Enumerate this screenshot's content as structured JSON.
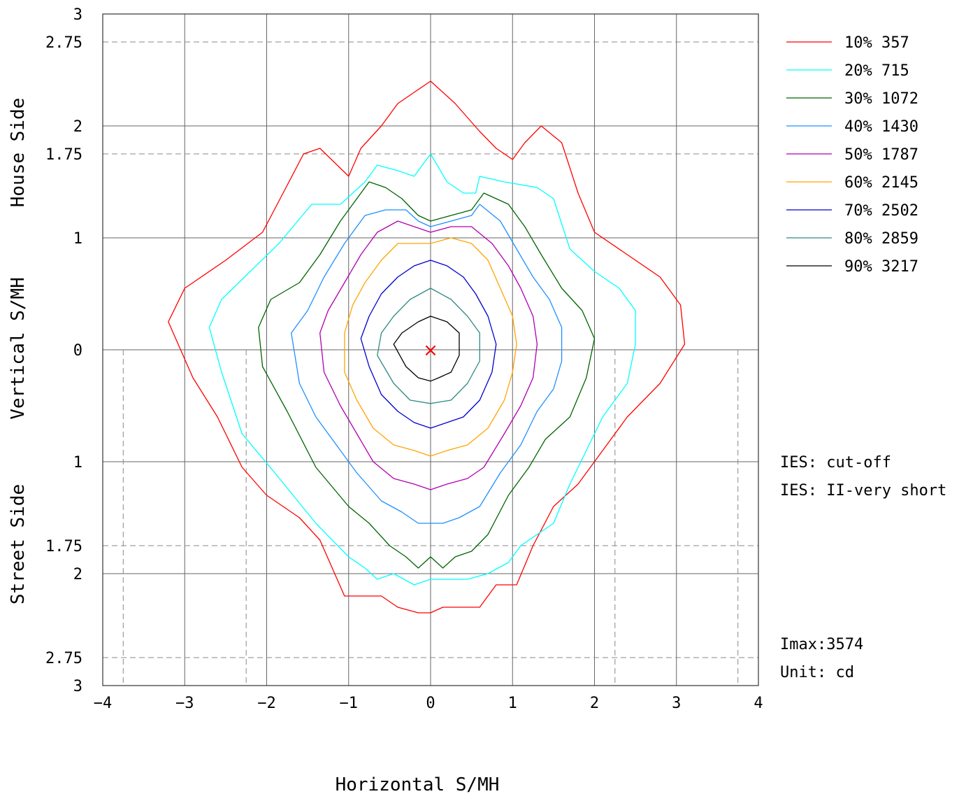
{
  "chart_data": {
    "type": "line",
    "subtype": "iso-intensity contour (isocandela) plot",
    "xlabel": "Horizontal  S/MH",
    "ylabel_segments": [
      "House Side",
      "Vertical  S/MH",
      "Street Side"
    ],
    "xlim": [
      -4,
      4
    ],
    "ylim": [
      -3,
      3
    ],
    "x_ticks": [
      "−4",
      "−3",
      "−2",
      "−1",
      "0",
      "1",
      "2",
      "3",
      "4"
    ],
    "y_ticks": [
      {
        "value": 3,
        "label": "3"
      },
      {
        "value": 2.75,
        "label": "2.75"
      },
      {
        "value": 2,
        "label": "2"
      },
      {
        "value": 1.75,
        "label": "1.75"
      },
      {
        "value": 1,
        "label": "1"
      },
      {
        "value": 0,
        "label": "0"
      },
      {
        "value": -1,
        "label": "1"
      },
      {
        "value": -1.75,
        "label": "1.75"
      },
      {
        "value": -2,
        "label": "2"
      },
      {
        "value": -2.75,
        "label": "2.75"
      },
      {
        "value": -3,
        "label": "3"
      }
    ],
    "grid": true,
    "grid_x": [
      -3,
      -2,
      -1,
      0,
      1,
      2,
      3
    ],
    "grid_y": [
      2,
      1,
      0,
      -1,
      -2
    ],
    "dashed_y": [
      2.75,
      1.75,
      -1.75,
      -2.75
    ],
    "dashed_x_lower": [
      -3.75,
      -2.25,
      2.25,
      3.75
    ],
    "legend_position": "right",
    "max_marker": {
      "x": 0,
      "y": 0,
      "symbol": "×",
      "color": "#ff0000"
    },
    "series": [
      {
        "name": "10%  357",
        "color": "#ff0000",
        "points": [
          [
            0,
            2.4
          ],
          [
            0.3,
            2.2
          ],
          [
            0.6,
            1.95
          ],
          [
            0.8,
            1.8
          ],
          [
            1.0,
            1.7
          ],
          [
            1.15,
            1.85
          ],
          [
            1.35,
            2.0
          ],
          [
            1.6,
            1.85
          ],
          [
            1.8,
            1.4
          ],
          [
            2.0,
            1.05
          ],
          [
            2.4,
            0.85
          ],
          [
            2.8,
            0.65
          ],
          [
            3.05,
            0.4
          ],
          [
            3.1,
            0.05
          ],
          [
            2.8,
            -0.3
          ],
          [
            2.4,
            -0.6
          ],
          [
            2.1,
            -0.9
          ],
          [
            1.8,
            -1.2
          ],
          [
            1.5,
            -1.4
          ],
          [
            1.25,
            -1.75
          ],
          [
            1.05,
            -2.1
          ],
          [
            0.8,
            -2.1
          ],
          [
            0.6,
            -2.3
          ],
          [
            0.35,
            -2.3
          ],
          [
            0.15,
            -2.3
          ],
          [
            0,
            -2.35
          ],
          [
            -0.15,
            -2.35
          ],
          [
            -0.4,
            -2.3
          ],
          [
            -0.6,
            -2.2
          ],
          [
            -0.8,
            -2.2
          ],
          [
            -1.05,
            -2.2
          ],
          [
            -1.35,
            -1.7
          ],
          [
            -1.6,
            -1.5
          ],
          [
            -2.0,
            -1.3
          ],
          [
            -2.3,
            -1.05
          ],
          [
            -2.6,
            -0.6
          ],
          [
            -2.9,
            -0.25
          ],
          [
            -3.2,
            0.25
          ],
          [
            -3.0,
            0.55
          ],
          [
            -2.5,
            0.8
          ],
          [
            -2.05,
            1.05
          ],
          [
            -1.8,
            1.4
          ],
          [
            -1.55,
            1.75
          ],
          [
            -1.35,
            1.8
          ],
          [
            -1.0,
            1.55
          ],
          [
            -0.85,
            1.8
          ],
          [
            -0.6,
            2.0
          ],
          [
            -0.4,
            2.2
          ],
          [
            -0.2,
            2.3
          ],
          [
            0,
            2.4
          ]
        ]
      },
      {
        "name": "20%  715",
        "color": "#00ffff",
        "points": [
          [
            0,
            1.75
          ],
          [
            0.2,
            1.5
          ],
          [
            0.4,
            1.4
          ],
          [
            0.55,
            1.4
          ],
          [
            0.6,
            1.55
          ],
          [
            0.9,
            1.5
          ],
          [
            1.3,
            1.45
          ],
          [
            1.5,
            1.35
          ],
          [
            1.7,
            0.9
          ],
          [
            2.0,
            0.7
          ],
          [
            2.3,
            0.55
          ],
          [
            2.5,
            0.35
          ],
          [
            2.5,
            0.05
          ],
          [
            2.4,
            -0.3
          ],
          [
            2.1,
            -0.6
          ],
          [
            1.9,
            -0.9
          ],
          [
            1.7,
            -1.2
          ],
          [
            1.5,
            -1.55
          ],
          [
            1.1,
            -1.75
          ],
          [
            0.95,
            -1.9
          ],
          [
            0.7,
            -2.0
          ],
          [
            0.45,
            -2.05
          ],
          [
            0.2,
            -2.05
          ],
          [
            0,
            -2.05
          ],
          [
            -0.2,
            -2.1
          ],
          [
            -0.45,
            -2.0
          ],
          [
            -0.65,
            -2.05
          ],
          [
            -0.8,
            -1.95
          ],
          [
            -1.0,
            -1.85
          ],
          [
            -1.4,
            -1.55
          ],
          [
            -1.9,
            -1.1
          ],
          [
            -2.3,
            -0.75
          ],
          [
            -2.55,
            -0.2
          ],
          [
            -2.7,
            0.2
          ],
          [
            -2.55,
            0.45
          ],
          [
            -2.2,
            0.7
          ],
          [
            -1.85,
            0.95
          ],
          [
            -1.45,
            1.3
          ],
          [
            -1.1,
            1.3
          ],
          [
            -0.8,
            1.5
          ],
          [
            -0.65,
            1.65
          ],
          [
            -0.4,
            1.6
          ],
          [
            -0.2,
            1.55
          ],
          [
            0,
            1.75
          ]
        ]
      },
      {
        "name": "30%  1072",
        "color": "#006400",
        "points": [
          [
            0,
            1.15
          ],
          [
            0.25,
            1.2
          ],
          [
            0.5,
            1.25
          ],
          [
            0.65,
            1.4
          ],
          [
            0.95,
            1.3
          ],
          [
            1.15,
            1.1
          ],
          [
            1.35,
            0.85
          ],
          [
            1.6,
            0.55
          ],
          [
            1.85,
            0.35
          ],
          [
            2.0,
            0.1
          ],
          [
            1.9,
            -0.25
          ],
          [
            1.7,
            -0.6
          ],
          [
            1.4,
            -0.8
          ],
          [
            1.2,
            -1.05
          ],
          [
            0.95,
            -1.3
          ],
          [
            0.7,
            -1.65
          ],
          [
            0.5,
            -1.8
          ],
          [
            0.3,
            -1.85
          ],
          [
            0.15,
            -1.95
          ],
          [
            0,
            -1.85
          ],
          [
            -0.15,
            -1.95
          ],
          [
            -0.3,
            -1.85
          ],
          [
            -0.5,
            -1.75
          ],
          [
            -0.75,
            -1.55
          ],
          [
            -1.0,
            -1.4
          ],
          [
            -1.4,
            -1.05
          ],
          [
            -1.75,
            -0.55
          ],
          [
            -2.05,
            -0.15
          ],
          [
            -2.1,
            0.2
          ],
          [
            -1.95,
            0.45
          ],
          [
            -1.6,
            0.6
          ],
          [
            -1.35,
            0.85
          ],
          [
            -1.1,
            1.15
          ],
          [
            -0.95,
            1.3
          ],
          [
            -0.75,
            1.5
          ],
          [
            -0.55,
            1.45
          ],
          [
            -0.35,
            1.35
          ],
          [
            -0.15,
            1.2
          ],
          [
            0,
            1.15
          ]
        ]
      },
      {
        "name": "40%  1430",
        "color": "#1e90ff",
        "points": [
          [
            0,
            1.1
          ],
          [
            0.25,
            1.15
          ],
          [
            0.5,
            1.2
          ],
          [
            0.6,
            1.3
          ],
          [
            0.85,
            1.15
          ],
          [
            1.05,
            0.9
          ],
          [
            1.25,
            0.65
          ],
          [
            1.45,
            0.45
          ],
          [
            1.6,
            0.2
          ],
          [
            1.6,
            -0.1
          ],
          [
            1.5,
            -0.35
          ],
          [
            1.3,
            -0.55
          ],
          [
            1.1,
            -0.85
          ],
          [
            0.85,
            -1.1
          ],
          [
            0.6,
            -1.4
          ],
          [
            0.35,
            -1.5
          ],
          [
            0.15,
            -1.55
          ],
          [
            0,
            -1.55
          ],
          [
            -0.15,
            -1.55
          ],
          [
            -0.35,
            -1.45
          ],
          [
            -0.6,
            -1.35
          ],
          [
            -0.9,
            -1.1
          ],
          [
            -1.15,
            -0.85
          ],
          [
            -1.4,
            -0.6
          ],
          [
            -1.6,
            -0.3
          ],
          [
            -1.7,
            0.15
          ],
          [
            -1.5,
            0.35
          ],
          [
            -1.3,
            0.65
          ],
          [
            -1.05,
            0.95
          ],
          [
            -0.8,
            1.2
          ],
          [
            -0.55,
            1.25
          ],
          [
            -0.3,
            1.25
          ],
          [
            -0.15,
            1.15
          ],
          [
            0,
            1.1
          ]
        ]
      },
      {
        "name": "50%  1787",
        "color": "#b000b0",
        "points": [
          [
            0,
            1.05
          ],
          [
            0.25,
            1.1
          ],
          [
            0.5,
            1.1
          ],
          [
            0.75,
            0.95
          ],
          [
            0.95,
            0.75
          ],
          [
            1.1,
            0.55
          ],
          [
            1.25,
            0.3
          ],
          [
            1.3,
            0.05
          ],
          [
            1.25,
            -0.25
          ],
          [
            1.1,
            -0.5
          ],
          [
            0.9,
            -0.75
          ],
          [
            0.65,
            -1.05
          ],
          [
            0.45,
            -1.15
          ],
          [
            0.2,
            -1.2
          ],
          [
            0,
            -1.25
          ],
          [
            -0.2,
            -1.2
          ],
          [
            -0.45,
            -1.15
          ],
          [
            -0.7,
            -1.0
          ],
          [
            -0.9,
            -0.75
          ],
          [
            -1.1,
            -0.5
          ],
          [
            -1.3,
            -0.2
          ],
          [
            -1.35,
            0.15
          ],
          [
            -1.25,
            0.35
          ],
          [
            -1.05,
            0.6
          ],
          [
            -0.85,
            0.85
          ],
          [
            -0.65,
            1.05
          ],
          [
            -0.4,
            1.15
          ],
          [
            -0.2,
            1.1
          ],
          [
            0,
            1.05
          ]
        ]
      },
      {
        "name": "60%  2145",
        "color": "#ffa500",
        "points": [
          [
            0,
            0.95
          ],
          [
            0.25,
            1.0
          ],
          [
            0.5,
            0.95
          ],
          [
            0.7,
            0.8
          ],
          [
            0.85,
            0.55
          ],
          [
            1.0,
            0.3
          ],
          [
            1.05,
            0.05
          ],
          [
            1.0,
            -0.2
          ],
          [
            0.9,
            -0.45
          ],
          [
            0.7,
            -0.7
          ],
          [
            0.45,
            -0.85
          ],
          [
            0.2,
            -0.9
          ],
          [
            0,
            -0.95
          ],
          [
            -0.2,
            -0.9
          ],
          [
            -0.45,
            -0.85
          ],
          [
            -0.7,
            -0.7
          ],
          [
            -0.9,
            -0.45
          ],
          [
            -1.05,
            -0.2
          ],
          [
            -1.05,
            0.15
          ],
          [
            -0.95,
            0.4
          ],
          [
            -0.8,
            0.6
          ],
          [
            -0.6,
            0.8
          ],
          [
            -0.4,
            0.95
          ],
          [
            -0.2,
            0.95
          ],
          [
            0,
            0.95
          ]
        ]
      },
      {
        "name": "70%  2502",
        "color": "#0000cd",
        "points": [
          [
            0,
            0.8
          ],
          [
            0.2,
            0.75
          ],
          [
            0.4,
            0.65
          ],
          [
            0.55,
            0.5
          ],
          [
            0.7,
            0.3
          ],
          [
            0.8,
            0.05
          ],
          [
            0.75,
            -0.2
          ],
          [
            0.6,
            -0.45
          ],
          [
            0.4,
            -0.6
          ],
          [
            0.2,
            -0.65
          ],
          [
            0,
            -0.7
          ],
          [
            -0.2,
            -0.65
          ],
          [
            -0.4,
            -0.55
          ],
          [
            -0.6,
            -0.4
          ],
          [
            -0.75,
            -0.15
          ],
          [
            -0.85,
            0.1
          ],
          [
            -0.75,
            0.3
          ],
          [
            -0.6,
            0.5
          ],
          [
            -0.4,
            0.65
          ],
          [
            -0.2,
            0.75
          ],
          [
            0,
            0.8
          ]
        ]
      },
      {
        "name": "80%  2859",
        "color": "#2e8b80",
        "points": [
          [
            0,
            0.55
          ],
          [
            0.25,
            0.45
          ],
          [
            0.45,
            0.3
          ],
          [
            0.6,
            0.15
          ],
          [
            0.6,
            -0.1
          ],
          [
            0.45,
            -0.3
          ],
          [
            0.25,
            -0.45
          ],
          [
            0,
            -0.48
          ],
          [
            -0.25,
            -0.45
          ],
          [
            -0.45,
            -0.3
          ],
          [
            -0.65,
            -0.05
          ],
          [
            -0.6,
            0.15
          ],
          [
            -0.45,
            0.3
          ],
          [
            -0.25,
            0.45
          ],
          [
            0,
            0.55
          ]
        ]
      },
      {
        "name": "90%  3217",
        "color": "#000000",
        "points": [
          [
            0,
            0.3
          ],
          [
            0.2,
            0.25
          ],
          [
            0.35,
            0.15
          ],
          [
            0.35,
            -0.05
          ],
          [
            0.25,
            -0.2
          ],
          [
            0.1,
            -0.25
          ],
          [
            0,
            -0.28
          ],
          [
            -0.15,
            -0.25
          ],
          [
            -0.3,
            -0.15
          ],
          [
            -0.45,
            0.05
          ],
          [
            -0.35,
            0.15
          ],
          [
            -0.15,
            0.25
          ],
          [
            0,
            0.3
          ]
        ]
      }
    ],
    "info": {
      "ies_line1": "IES: cut-off",
      "ies_line2": "IES: II-very short",
      "imax": "Imax:3574",
      "unit": "Unit: cd"
    }
  }
}
